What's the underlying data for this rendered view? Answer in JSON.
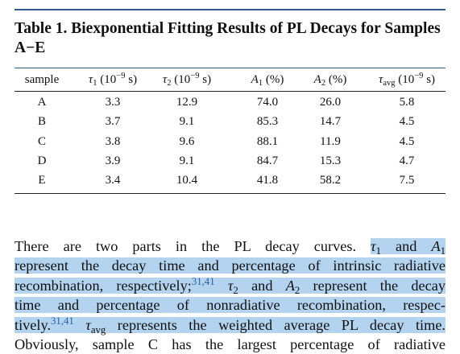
{
  "title": "Table 1. Biexponential Fitting Results of PL Decays for Samples A−E",
  "table": {
    "columns": [
      {
        "label": "sample"
      },
      {
        "symbol": "τ",
        "sub": "1",
        "unit": "(10",
        "exp": "−9",
        "unit_end": "s)"
      },
      {
        "symbol": "τ",
        "sub": "2",
        "unit": "(10",
        "exp": "−9",
        "unit_end": "s)"
      },
      {
        "symbol": "A",
        "sub": "1",
        "unit": "(%)"
      },
      {
        "symbol": "A",
        "sub": "2",
        "unit": "(%)"
      },
      {
        "symbol": "τ",
        "sub": "avg",
        "unit": "(10",
        "exp": "−9",
        "unit_end": "s)"
      }
    ],
    "rows": [
      [
        "A",
        "3.3",
        "12.9",
        "74.0",
        "26.0",
        "5.8"
      ],
      [
        "B",
        "3.7",
        "9.1",
        "85.3",
        "14.7",
        "4.5"
      ],
      [
        "C",
        "3.8",
        "9.6",
        "88.1",
        "11.9",
        "4.5"
      ],
      [
        "D",
        "3.9",
        "9.1",
        "84.7",
        "15.3",
        "4.7"
      ],
      [
        "E",
        "3.4",
        "10.4",
        "41.8",
        "58.2",
        "7.5"
      ]
    ]
  },
  "paragraph": {
    "lines": [
      [
        "There are two parts in the PL decay curves.",
        "τ",
        "1",
        "and",
        "A",
        "1"
      ],
      [
        "represent the decay time and percentage of intrinsic radiative"
      ],
      [
        "recombination, respectively;",
        "31,41",
        "τ",
        "2",
        "and",
        "A",
        "2",
        "represent the decay"
      ],
      [
        "time and percentage of nonradiative recombination, respec-"
      ],
      [
        "tively.",
        "31,41",
        "τ",
        "avg",
        "represents the weighted average PL decay time."
      ],
      [
        "Obviously, sample C has the largest percentage of radiative"
      ]
    ]
  }
}
